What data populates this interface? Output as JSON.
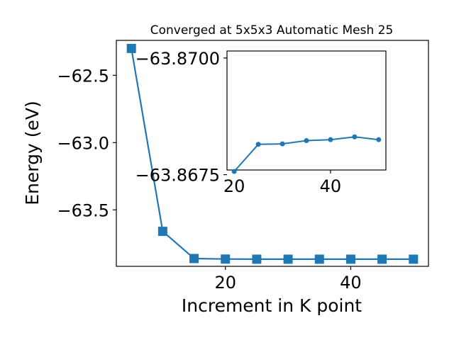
{
  "chart_data": [
    {
      "type": "line",
      "title": "Converged at 5x5x3 Automatic Mesh 25",
      "xlabel": "Increment in K point",
      "ylabel": "Energy (eV)",
      "xlim": [
        2.6,
        52.4
      ],
      "ylim": [
        -63.92,
        -62.24
      ],
      "xticks": [
        20,
        40
      ],
      "yticks": [
        -62.5,
        -63.0,
        -63.5
      ],
      "ytick_labels": [
        "−62.5",
        "−63.0",
        "−63.5"
      ],
      "grid": false,
      "marker": "square",
      "color": "#1f77b4",
      "series": [
        {
          "x": [
            5,
            10,
            15,
            20,
            25,
            30,
            35,
            40,
            45,
            50
          ],
          "y": [
            -62.3,
            -63.66,
            -63.862,
            -63.866,
            -63.867,
            -63.867,
            -63.867,
            -63.867,
            -63.867,
            -63.867
          ]
        }
      ]
    },
    {
      "type": "line",
      "title": "",
      "xlabel": "",
      "ylabel": "",
      "xlim": [
        18.5,
        51.5
      ],
      "ylim": [
        -63.8676,
        -63.87015
      ],
      "xticks": [
        20,
        40
      ],
      "yticks": [
        -63.87,
        -63.8675
      ],
      "ytick_labels": [
        "−63.8700",
        "−63.8675"
      ],
      "grid": false,
      "marker": "circle",
      "color": "#1f77b4",
      "series": [
        {
          "x": [
            20,
            25,
            30,
            35,
            40,
            45,
            50
          ],
          "y": [
            -63.86757,
            -63.86815,
            -63.86816,
            -63.86823,
            -63.86825,
            -63.86831,
            -63.86825
          ]
        }
      ]
    }
  ]
}
